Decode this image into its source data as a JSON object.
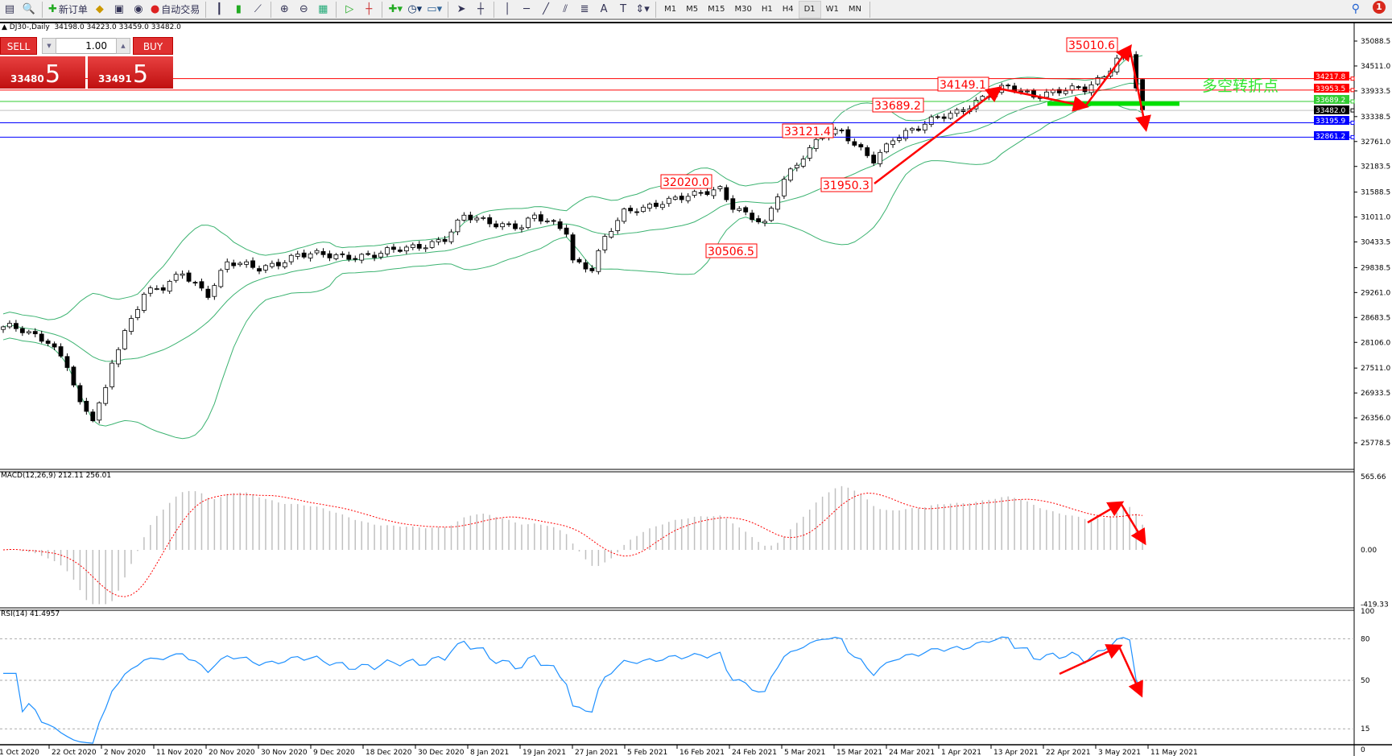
{
  "toolbar": {
    "new_order": "新订单",
    "auto_trading": "自动交易",
    "timeframes": [
      "M1",
      "M5",
      "M15",
      "M30",
      "H1",
      "H4",
      "D1",
      "W1",
      "MN"
    ],
    "active_timeframe": "D1",
    "notification_count": "1"
  },
  "chart": {
    "symbol": "DJ30-,Daily",
    "ohlc": "34198.0 34223.0 33459.0 33482.0",
    "trade_panel": {
      "sell": "SELL",
      "buy": "BUY",
      "lots": "1.00",
      "bid_main": "33480",
      "bid_frac": "5",
      "ask_main": "33491",
      "ask_frac": "5"
    },
    "price_axis": [
      "35088.5",
      "34511.0",
      "33933.5",
      "33338.5",
      "32761.0",
      "32183.5",
      "31588.5",
      "31011.0",
      "30433.5",
      "29838.5",
      "29261.0",
      "28683.5",
      "28106.0",
      "27511.0",
      "26933.5",
      "26356.0",
      "25778.5"
    ],
    "levels": [
      {
        "value": "34217.8",
        "color": "#ff0000"
      },
      {
        "value": "33953.5",
        "color": "#ff0000"
      },
      {
        "value": "33689.2",
        "color": "#32cd32"
      },
      {
        "value": "33482.0",
        "color": "#000000",
        "line": "#c0c0c0"
      },
      {
        "value": "33195.9",
        "color": "#0000ff"
      },
      {
        "value": "32861.2",
        "color": "#0000ff"
      }
    ],
    "annotations": [
      "35010.6",
      "34149.1",
      "33689.2",
      "33121.4",
      "32020.0",
      "31950.3",
      "30506.5"
    ],
    "note": "多空转折点",
    "colors": {
      "bull": "#ffffff",
      "bear": "#000000",
      "bands": "#3cb371",
      "arrow": "#ff0000",
      "rsi": "#1e90ff",
      "macd_hist": "#c0c0c0",
      "macd_signal": "#ff0000"
    },
    "price_series": [
      [
        0,
        28466
      ],
      [
        3,
        28370
      ],
      [
        7,
        28170
      ],
      [
        10,
        27590
      ],
      [
        12,
        26620
      ],
      [
        14,
        26320
      ],
      [
        16,
        27000
      ],
      [
        17,
        27690
      ],
      [
        19,
        28370
      ],
      [
        22,
        29240
      ],
      [
        25,
        29340
      ],
      [
        28,
        29730
      ],
      [
        32,
        29240
      ],
      [
        35,
        29930
      ],
      [
        40,
        29830
      ],
      [
        46,
        30120
      ],
      [
        53,
        30120
      ],
      [
        58,
        30120
      ],
      [
        64,
        30320
      ],
      [
        69,
        30510
      ],
      [
        72,
        31000
      ],
      [
        76,
        30900
      ],
      [
        81,
        30800
      ],
      [
        83,
        31000
      ],
      [
        88,
        30700
      ],
      [
        89,
        30020
      ],
      [
        92,
        29830
      ],
      [
        94,
        30510
      ],
      [
        97,
        31090
      ],
      [
        103,
        31390
      ],
      [
        108,
        31490
      ],
      [
        112,
        31680
      ],
      [
        114,
        31290
      ],
      [
        117,
        31000
      ],
      [
        119,
        30800
      ],
      [
        122,
        31870
      ],
      [
        125,
        32460
      ],
      [
        128,
        32950
      ],
      [
        131,
        32950
      ],
      [
        133,
        32650
      ],
      [
        136,
        32360
      ],
      [
        139,
        32850
      ],
      [
        143,
        33040
      ],
      [
        146,
        33330
      ],
      [
        150,
        33530
      ],
      [
        154,
        33820
      ],
      [
        157,
        34020
      ],
      [
        161,
        33860
      ],
      [
        165,
        33920
      ],
      [
        169,
        33960
      ],
      [
        172,
        34310
      ],
      [
        174,
        34700
      ],
      [
        176,
        34800
      ],
      [
        177,
        34020
      ],
      [
        178,
        33482
      ]
    ]
  },
  "macd": {
    "label": "MACD(12,26,9) 212.11 256.01",
    "axis": [
      "565.66",
      "0.00",
      "-419.33"
    ]
  },
  "rsi": {
    "label": "RSI(14) 41.4957",
    "axis": [
      "100",
      "80",
      "50",
      "15",
      "0"
    ]
  },
  "dates": [
    "1 Oct 2020",
    "22 Oct 2020",
    "2 Nov 2020",
    "11 Nov 2020",
    "20 Nov 2020",
    "30 Nov 2020",
    "9 Dec 2020",
    "18 Dec 2020",
    "30 Dec 2020",
    "8 Jan 2021",
    "19 Jan 2021",
    "27 Jan 2021",
    "5 Feb 2021",
    "16 Feb 2021",
    "24 Feb 2021",
    "5 Mar 2021",
    "15 Mar 2021",
    "24 Mar 2021",
    "1 Apr 2021",
    "13 Apr 2021",
    "22 Apr 2021",
    "3 May 2021",
    "11 May 2021"
  ]
}
